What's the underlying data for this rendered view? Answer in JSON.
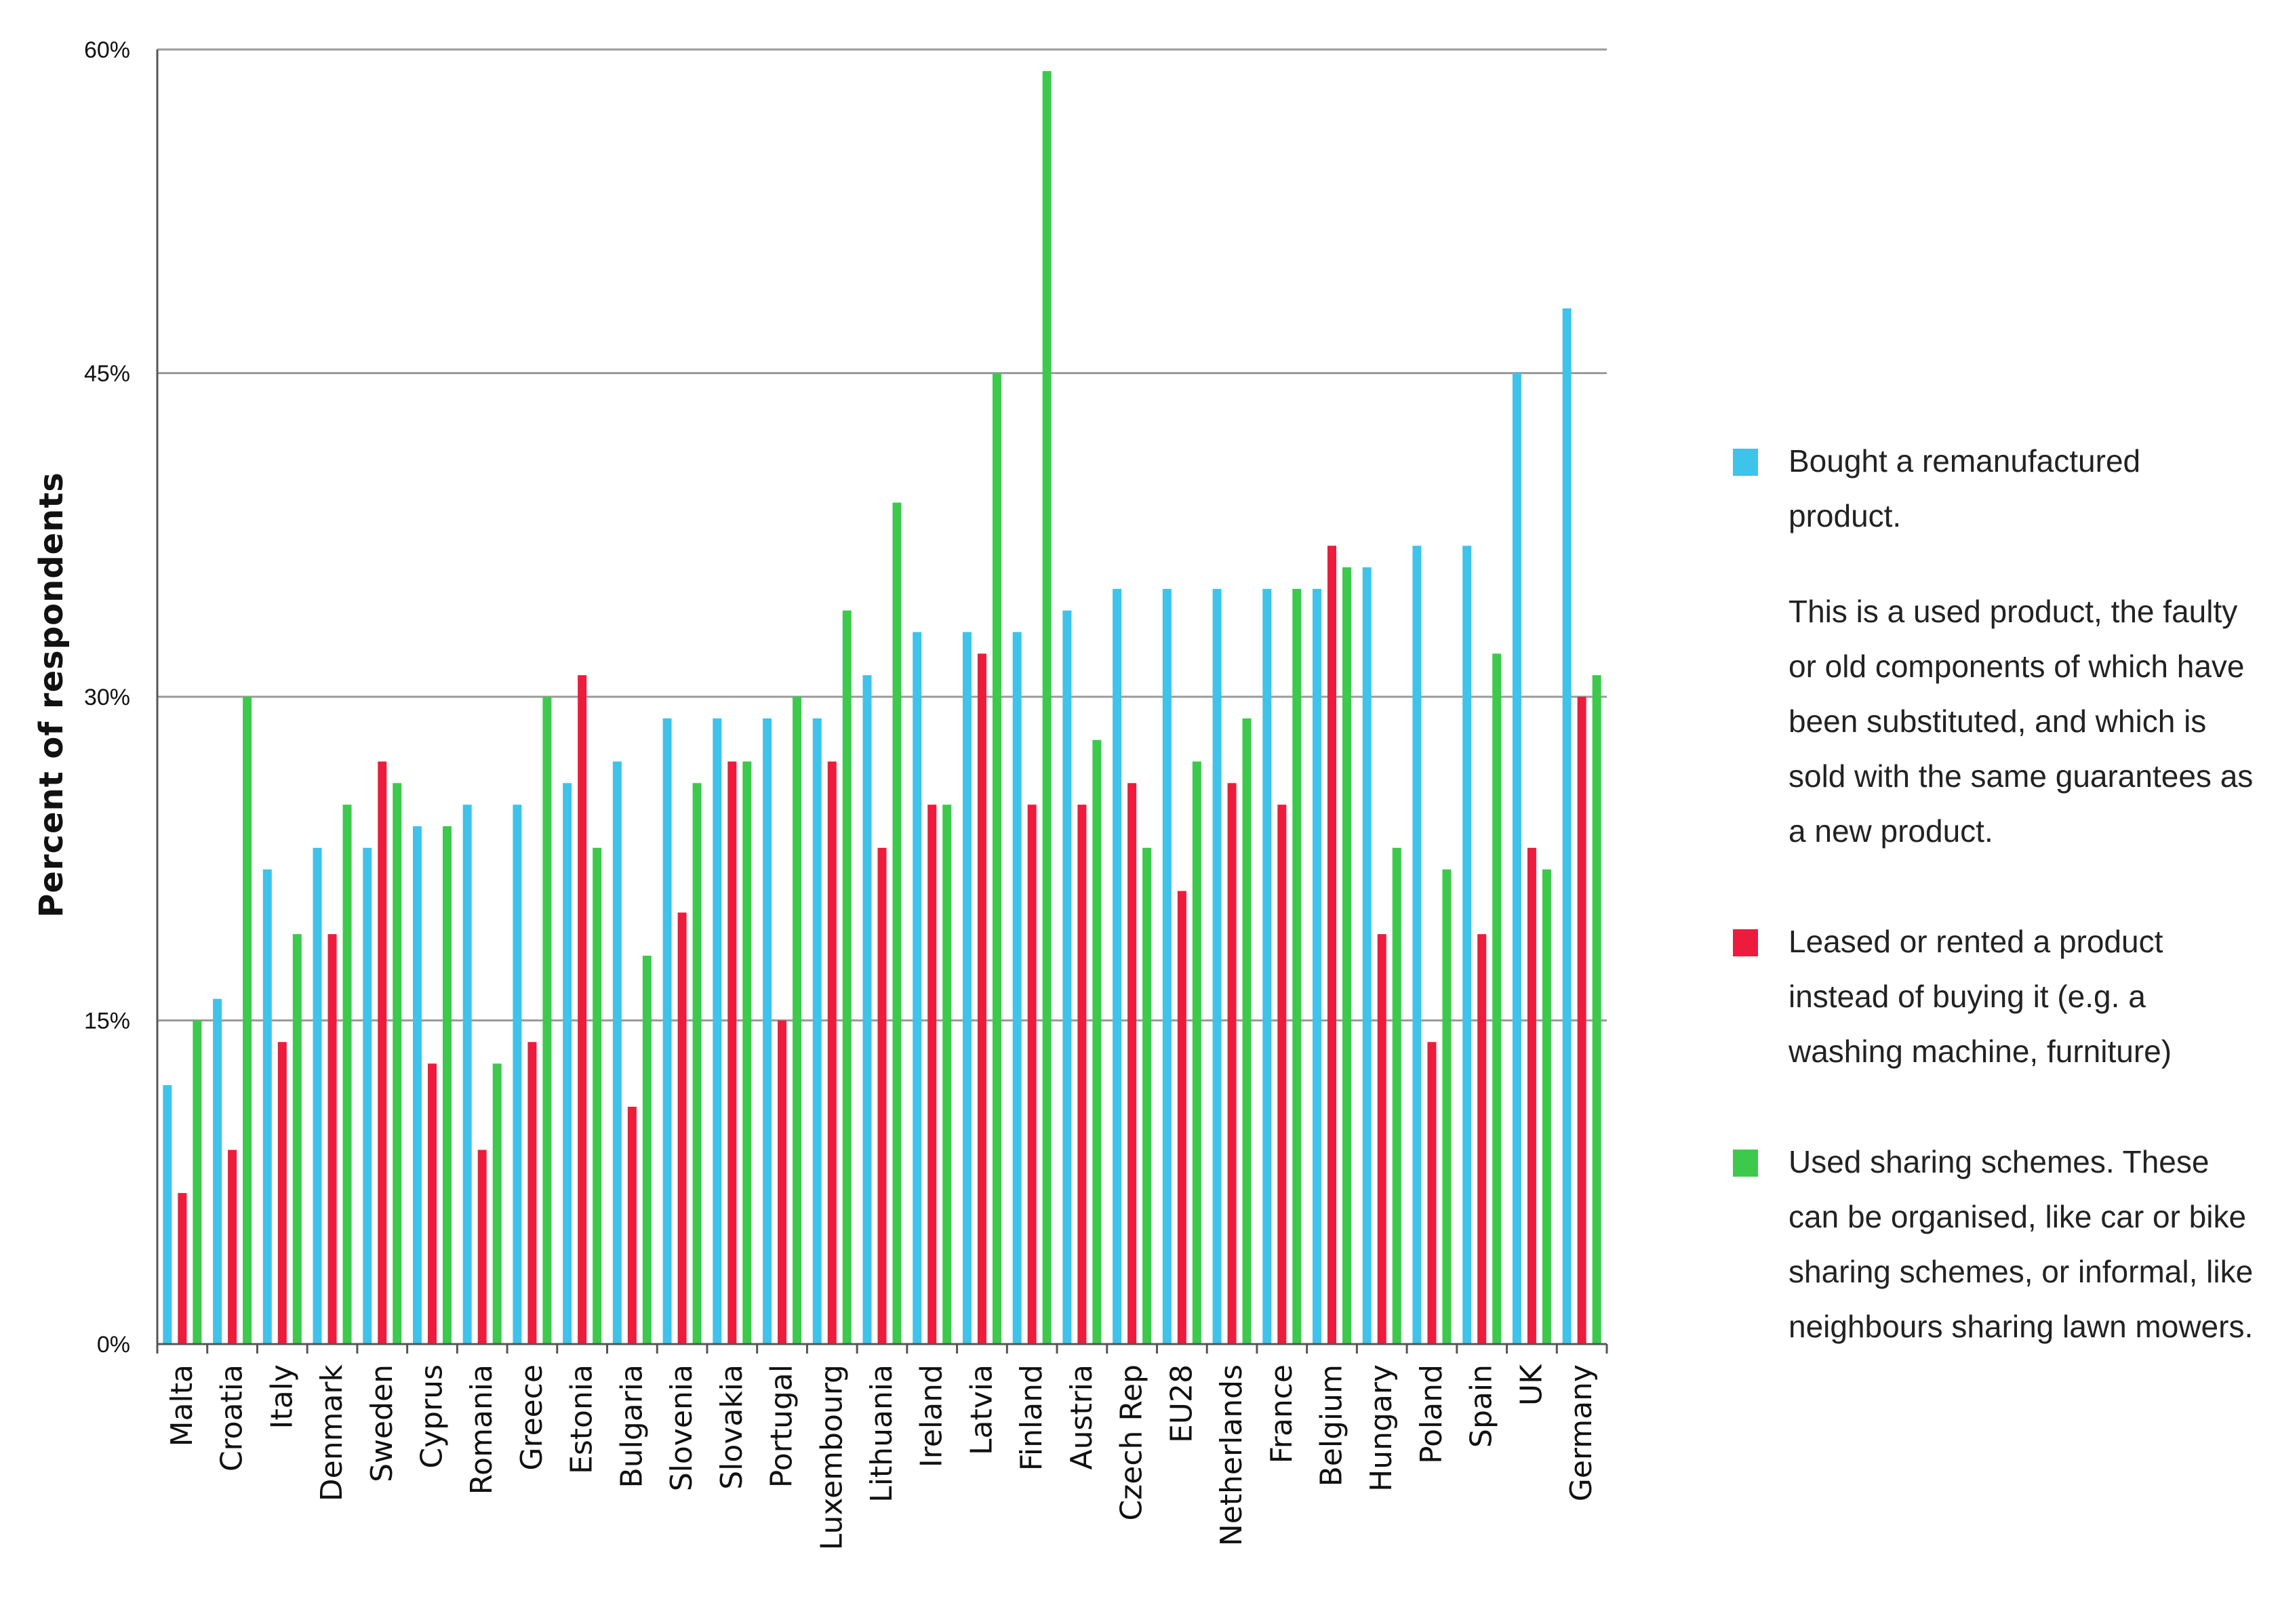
{
  "chart_data": {
    "type": "bar",
    "title": "",
    "xlabel": "",
    "ylabel": "Percent of respondents",
    "ylim": [
      0,
      60
    ],
    "yticks": [
      0,
      15,
      30,
      45,
      60
    ],
    "yticklabels": [
      "0%",
      "15%",
      "30%",
      "45%",
      "60%"
    ],
    "grid": true,
    "legend_position": "right",
    "categories": [
      "Malta",
      "Croatia",
      "Italy",
      "Denmark",
      "Sweden",
      "Cyprus",
      "Romania",
      "Greece",
      "Estonia",
      "Bulgaria",
      "Slovenia",
      "Slovakia",
      "Portugal",
      "Luxembourg",
      "Lithuania",
      "Ireland",
      "Latvia",
      "Finland",
      "Austria",
      "Czech Rep",
      "EU28",
      "Netherlands",
      "France",
      "Belgium",
      "Hungary",
      "Poland",
      "Spain",
      "UK",
      "Germany"
    ],
    "series": [
      {
        "name": "Bought a remanufactured product.",
        "description": "This is a used product, the faulty or old components  of which have been substituted, and which is sold with the same guarantees as a new product.",
        "color": "#3ec3ea",
        "values": [
          12,
          16,
          22,
          23,
          23,
          24,
          25,
          25,
          26,
          27,
          29,
          29,
          29,
          29,
          31,
          33,
          33,
          33,
          34,
          35,
          35,
          35,
          35,
          35,
          36,
          37,
          37,
          45,
          48
        ]
      },
      {
        "name": "Leased or rented a product instead of buying it (e.g. a washing machine, furniture)",
        "description": "",
        "color": "#ee1c3c",
        "values": [
          7,
          9,
          14,
          19,
          27,
          13,
          9,
          14,
          31,
          11,
          20,
          27,
          15,
          27,
          23,
          25,
          32,
          25,
          25,
          26,
          21,
          26,
          25,
          37,
          19,
          14,
          19,
          23,
          30
        ]
      },
      {
        "name": "Used sharing schemes. These can be organised, like car or bike sharing schemes, or informal, like neighbours sharing lawn mowers.",
        "description": "",
        "color": "#3cc94c",
        "values": [
          15,
          30,
          19,
          25,
          26,
          24,
          13,
          30,
          23,
          18,
          26,
          27,
          30,
          34,
          39,
          25,
          45,
          59,
          28,
          23,
          27,
          29,
          35,
          36,
          23,
          22,
          32,
          22,
          31
        ]
      }
    ]
  },
  "legend": {
    "items": [
      {
        "title": "Bought a remanufactured product.",
        "description": "This is a used product, the faulty or old components  of which have been substituted, and which is sold with the same guarantees as a new product.",
        "color": "#3ec3ea"
      },
      {
        "title": "Leased or rented a product instead of buying it (e.g. a washing machine, furniture)",
        "description": "",
        "color": "#ee1c3c"
      },
      {
        "title": "Used sharing schemes. These can be organised, like car or bike sharing schemes, or informal, like neighbours sharing lawn mowers.",
        "description": "",
        "color": "#3cc94c"
      }
    ]
  }
}
